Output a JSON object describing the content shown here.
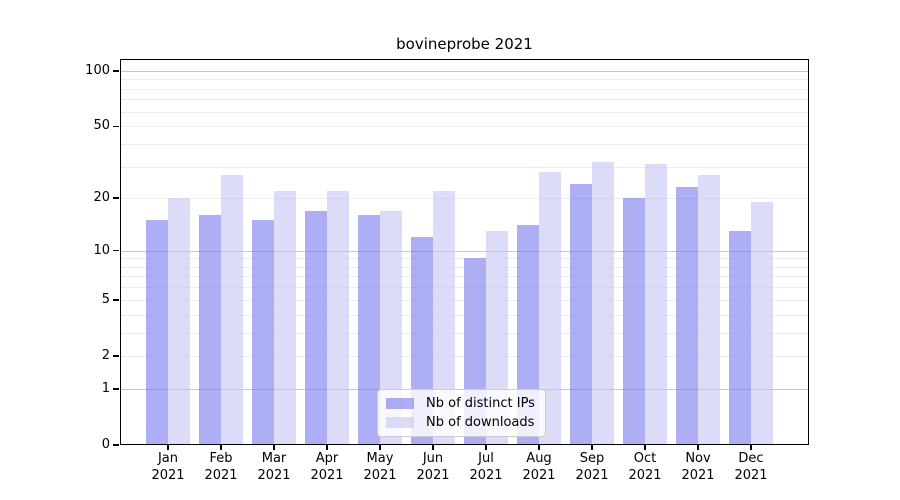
{
  "figure": {
    "background": "#ffffff"
  },
  "chart_data": {
    "type": "bar",
    "title": "bovineprobe 2021",
    "categories": [
      "Jan 2021",
      "Feb 2021",
      "Mar 2021",
      "Apr 2021",
      "May 2021",
      "Jun 2021",
      "Jul 2021",
      "Aug 2021",
      "Sep 2021",
      "Oct 2021",
      "Nov 2021",
      "Dec 2021"
    ],
    "months": [
      "Jan",
      "Feb",
      "Mar",
      "Apr",
      "May",
      "Jun",
      "Jul",
      "Aug",
      "Sep",
      "Oct",
      "Nov",
      "Dec"
    ],
    "year": "2021",
    "series": [
      {
        "name": "Nb of distinct IPs",
        "values": [
          15,
          16,
          15,
          17,
          16,
          12,
          9,
          14,
          24,
          20,
          23,
          13
        ],
        "color": "rgba(124,124,237,0.62)"
      },
      {
        "name": "Nb of downloads",
        "values": [
          20,
          27,
          22,
          22,
          17,
          22,
          13,
          28,
          32,
          31,
          27,
          19
        ],
        "color": "rgba(199,199,244,0.62)"
      }
    ],
    "xlabel": "",
    "ylabel": "",
    "yscale": "log1p",
    "ylim": [
      0,
      116
    ],
    "yticks": [
      0,
      1,
      2,
      5,
      10,
      20,
      50,
      100
    ],
    "minor_gridlines": [
      2,
      3,
      4,
      5,
      6,
      7,
      8,
      9,
      20,
      30,
      40,
      50,
      60,
      70,
      80,
      90
    ],
    "major_gridlines": [
      1,
      10,
      100
    ],
    "grid": true,
    "legend_position": "lower-center"
  },
  "legend": {
    "items": [
      {
        "label": "Nb of distinct IPs"
      },
      {
        "label": "Nb of downloads"
      }
    ]
  },
  "colors": {
    "bar_dark": "rgba(124,124,237,0.62)",
    "bar_light": "rgba(199,199,244,0.62)",
    "grid_minor": "#ececec",
    "grid_major": "#c6c6c6",
    "axis": "#000000",
    "legend_border": "#cccccc"
  }
}
